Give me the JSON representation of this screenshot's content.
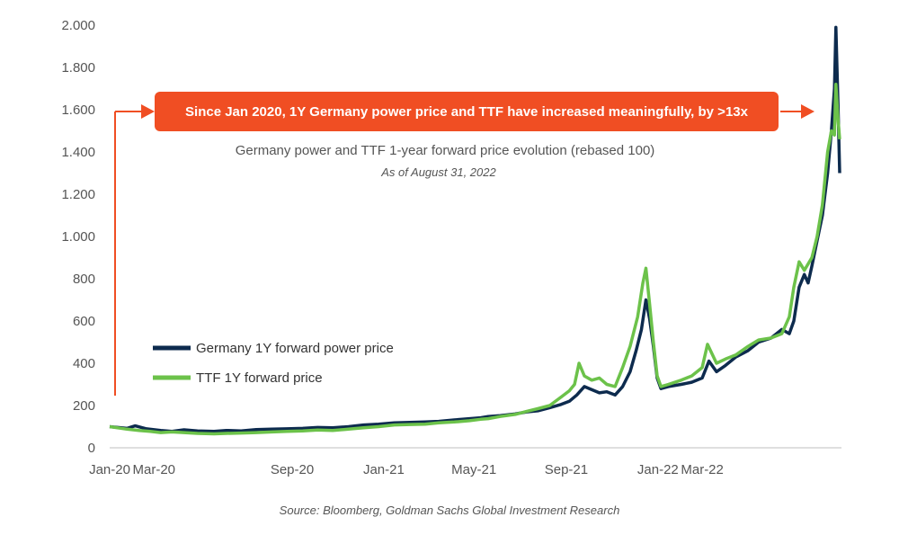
{
  "chart_data": {
    "type": "line",
    "title": "Germany power and TTF 1-year forward price evolution (rebased 100)",
    "subtitle": "As of August 31, 2022",
    "source": "Source: Bloomberg, Goldman Sachs Global Investment Research",
    "annotation": "Since Jan 2020, 1Y Germany power price and TTF have increased meaningfully, by >13x",
    "ylim": [
      0,
      2000
    ],
    "yticks": [
      0,
      200,
      400,
      600,
      800,
      1000,
      1200,
      1400,
      1600,
      1800,
      2000
    ],
    "ytick_labels": [
      "0",
      "200",
      "400",
      "600",
      "800",
      "1.000",
      "1.200",
      "1.400",
      "1.600",
      "1.800",
      "2.000"
    ],
    "xtick_labels": [
      "Jan-20",
      "Mar-20",
      "Sep-20",
      "Jan-21",
      "May-21",
      "Sep-21",
      "Jan-22",
      "Mar-22"
    ],
    "xlim": [
      "2020-01-02",
      "2022-08-31"
    ],
    "grid": false,
    "legend_position": "left-middle",
    "series": [
      {
        "name": "Germany 1Y forward power price",
        "color": "#0d2b4e",
        "points": [
          [
            "2020-01-02",
            100
          ],
          [
            "2020-01-25",
            92
          ],
          [
            "2020-02-05",
            104
          ],
          [
            "2020-02-20",
            90
          ],
          [
            "2020-03-10",
            82
          ],
          [
            "2020-03-25",
            78
          ],
          [
            "2020-04-10",
            85
          ],
          [
            "2020-04-28",
            80
          ],
          [
            "2020-05-20",
            78
          ],
          [
            "2020-06-05",
            82
          ],
          [
            "2020-06-25",
            80
          ],
          [
            "2020-07-15",
            86
          ],
          [
            "2020-08-05",
            88
          ],
          [
            "2020-08-25",
            90
          ],
          [
            "2020-09-15",
            92
          ],
          [
            "2020-10-05",
            96
          ],
          [
            "2020-10-25",
            95
          ],
          [
            "2020-11-15",
            100
          ],
          [
            "2020-12-05",
            108
          ],
          [
            "2020-12-25",
            112
          ],
          [
            "2021-01-15",
            118
          ],
          [
            "2021-02-05",
            120
          ],
          [
            "2021-02-25",
            122
          ],
          [
            "2021-03-15",
            125
          ],
          [
            "2021-04-05",
            132
          ],
          [
            "2021-04-25",
            138
          ],
          [
            "2021-05-10",
            142
          ],
          [
            "2021-05-20",
            148
          ],
          [
            "2021-06-05",
            152
          ],
          [
            "2021-06-25",
            160
          ],
          [
            "2021-07-10",
            170
          ],
          [
            "2021-07-25",
            175
          ],
          [
            "2021-08-10",
            190
          ],
          [
            "2021-08-25",
            205
          ],
          [
            "2021-09-05",
            220
          ],
          [
            "2021-09-15",
            250
          ],
          [
            "2021-09-25",
            290
          ],
          [
            "2021-10-05",
            275
          ],
          [
            "2021-10-15",
            260
          ],
          [
            "2021-10-25",
            265
          ],
          [
            "2021-11-05",
            250
          ],
          [
            "2021-11-15",
            290
          ],
          [
            "2021-11-25",
            360
          ],
          [
            "2021-12-03",
            460
          ],
          [
            "2021-12-10",
            560
          ],
          [
            "2021-12-16",
            700
          ],
          [
            "2021-12-21",
            610
          ],
          [
            "2021-12-26",
            480
          ],
          [
            "2021-12-31",
            330
          ],
          [
            "2022-01-05",
            280
          ],
          [
            "2022-01-15",
            290
          ],
          [
            "2022-02-01",
            300
          ],
          [
            "2022-02-15",
            310
          ],
          [
            "2022-03-01",
            330
          ],
          [
            "2022-03-10",
            410
          ],
          [
            "2022-03-20",
            360
          ],
          [
            "2022-04-01",
            390
          ],
          [
            "2022-04-15",
            430
          ],
          [
            "2022-05-01",
            460
          ],
          [
            "2022-05-15",
            500
          ],
          [
            "2022-06-01",
            520
          ],
          [
            "2022-06-15",
            560
          ],
          [
            "2022-06-25",
            540
          ],
          [
            "2022-07-01",
            600
          ],
          [
            "2022-07-08",
            760
          ],
          [
            "2022-07-15",
            820
          ],
          [
            "2022-07-20",
            780
          ],
          [
            "2022-07-25",
            860
          ],
          [
            "2022-08-01",
            980
          ],
          [
            "2022-08-08",
            1100
          ],
          [
            "2022-08-15",
            1300
          ],
          [
            "2022-08-20",
            1500
          ],
          [
            "2022-08-24",
            1700
          ],
          [
            "2022-08-26",
            1990
          ],
          [
            "2022-08-29",
            1600
          ],
          [
            "2022-08-31",
            1300
          ]
        ]
      },
      {
        "name": "TTF  1Y forward price",
        "color": "#6cc24a",
        "points": [
          [
            "2020-01-02",
            100
          ],
          [
            "2020-01-25",
            88
          ],
          [
            "2020-02-10",
            82
          ],
          [
            "2020-02-25",
            78
          ],
          [
            "2020-03-10",
            72
          ],
          [
            "2020-03-25",
            75
          ],
          [
            "2020-04-10",
            72
          ],
          [
            "2020-04-28",
            68
          ],
          [
            "2020-05-20",
            66
          ],
          [
            "2020-06-05",
            68
          ],
          [
            "2020-06-25",
            70
          ],
          [
            "2020-07-15",
            72
          ],
          [
            "2020-08-05",
            75
          ],
          [
            "2020-08-25",
            78
          ],
          [
            "2020-09-15",
            80
          ],
          [
            "2020-10-05",
            84
          ],
          [
            "2020-10-25",
            82
          ],
          [
            "2020-11-15",
            88
          ],
          [
            "2020-12-05",
            95
          ],
          [
            "2020-12-25",
            100
          ],
          [
            "2021-01-15",
            108
          ],
          [
            "2021-02-05",
            110
          ],
          [
            "2021-02-25",
            112
          ],
          [
            "2021-03-15",
            118
          ],
          [
            "2021-04-05",
            122
          ],
          [
            "2021-04-25",
            128
          ],
          [
            "2021-05-10",
            135
          ],
          [
            "2021-05-20",
            138
          ],
          [
            "2021-06-05",
            148
          ],
          [
            "2021-06-25",
            158
          ],
          [
            "2021-07-10",
            172
          ],
          [
            "2021-07-25",
            185
          ],
          [
            "2021-08-10",
            200
          ],
          [
            "2021-08-25",
            240
          ],
          [
            "2021-09-05",
            270
          ],
          [
            "2021-09-12",
            300
          ],
          [
            "2021-09-18",
            400
          ],
          [
            "2021-09-25",
            340
          ],
          [
            "2021-10-05",
            320
          ],
          [
            "2021-10-15",
            330
          ],
          [
            "2021-10-25",
            300
          ],
          [
            "2021-11-05",
            290
          ],
          [
            "2021-11-15",
            380
          ],
          [
            "2021-11-25",
            480
          ],
          [
            "2021-12-05",
            620
          ],
          [
            "2021-12-12",
            780
          ],
          [
            "2021-12-16",
            850
          ],
          [
            "2021-12-21",
            680
          ],
          [
            "2021-12-26",
            500
          ],
          [
            "2021-12-31",
            340
          ],
          [
            "2022-01-05",
            290
          ],
          [
            "2022-01-15",
            300
          ],
          [
            "2022-02-01",
            320
          ],
          [
            "2022-02-15",
            340
          ],
          [
            "2022-03-01",
            380
          ],
          [
            "2022-03-08",
            490
          ],
          [
            "2022-03-20",
            400
          ],
          [
            "2022-04-01",
            420
          ],
          [
            "2022-04-15",
            440
          ],
          [
            "2022-05-01",
            480
          ],
          [
            "2022-05-15",
            510
          ],
          [
            "2022-06-01",
            520
          ],
          [
            "2022-06-15",
            540
          ],
          [
            "2022-06-25",
            620
          ],
          [
            "2022-07-01",
            760
          ],
          [
            "2022-07-08",
            880
          ],
          [
            "2022-07-15",
            840
          ],
          [
            "2022-07-25",
            900
          ],
          [
            "2022-08-01",
            1000
          ],
          [
            "2022-08-08",
            1150
          ],
          [
            "2022-08-15",
            1400
          ],
          [
            "2022-08-20",
            1500
          ],
          [
            "2022-08-24",
            1480
          ],
          [
            "2022-08-26",
            1720
          ],
          [
            "2022-08-29",
            1550
          ],
          [
            "2022-08-31",
            1460
          ]
        ]
      }
    ]
  }
}
